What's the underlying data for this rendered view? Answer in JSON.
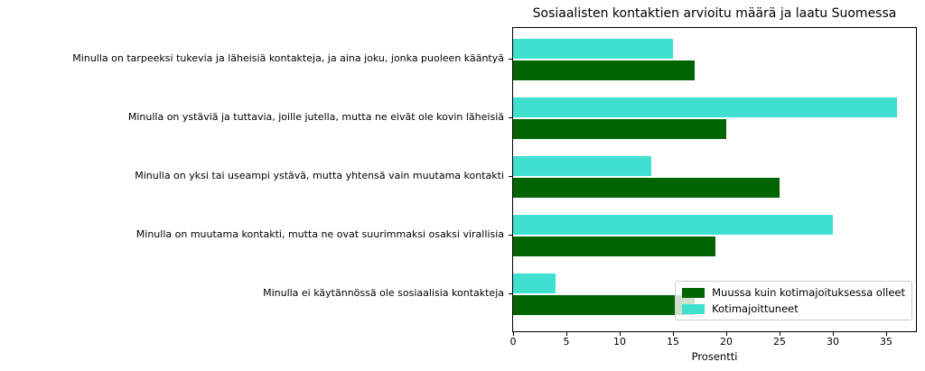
{
  "chart_data": {
    "type": "bar",
    "orientation": "horizontal",
    "title": "Sosiaalisten kontaktien arvioitu määrä ja laatu Suomessa",
    "xlabel": "Prosentti",
    "ylabel": "",
    "categories": [
      "Minulla on tarpeeksi tukevia ja läheisiä kontakteja, ja aina joku, jonka puoleen kääntyä",
      "Minulla on ystäviä ja tuttavia, joille jutella, mutta ne eivät ole kovin läheisiä",
      "Minulla on yksi tai useampi ystävä, mutta yhtensä vain muutama kontakti",
      "Minulla on muutama kontakti, mutta ne ovat suurimmaksi osaksi virallisia",
      "Minulla ei käytännössä ole sosiaalisia kontakteja"
    ],
    "series": [
      {
        "key": "muussa-kuin-kotimajoituksessa-olleet",
        "name": "Muussa kuin kotimajoituksessa olleet",
        "color": "#006400",
        "values": [
          17,
          20,
          25,
          19,
          17
        ]
      },
      {
        "key": "kotimajoittuneet",
        "name": "Kotimajoittuneet",
        "color": "#40E0D0",
        "values": [
          15,
          36,
          13,
          30,
          4
        ]
      }
    ],
    "x_ticks": [
      0,
      5,
      10,
      15,
      20,
      25,
      30,
      35
    ],
    "xlim": [
      0,
      37.8
    ],
    "grid": false,
    "legend_position": "lower right",
    "row_draw_order": [
      1,
      0
    ],
    "axis_color": "#000000",
    "legend_border_color": "#cccccc"
  }
}
